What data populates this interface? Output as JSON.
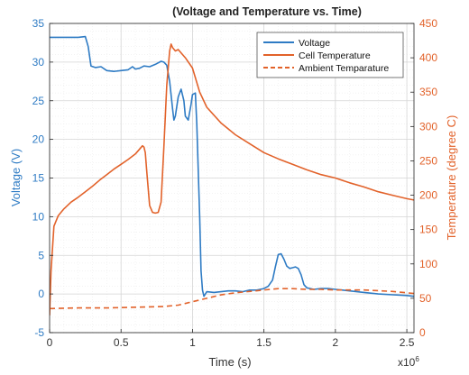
{
  "chart_data": {
    "type": "line",
    "title": "(Voltage and Temperature vs. Time)",
    "xlabel": "Time (s)",
    "ylabel_left": "Voltage (V)",
    "ylabel_right": "Temperature (degree C)",
    "x_exponent_label": "x10",
    "x_exponent_power": "6",
    "xlim": [
      0,
      2.55
    ],
    "ylim_left": [
      -5,
      35
    ],
    "ylim_right": [
      0,
      450
    ],
    "x_ticks": [
      0,
      0.5,
      1,
      1.5,
      2,
      2.5
    ],
    "x_tick_labels": [
      "0",
      "0.5",
      "1",
      "1.5",
      "2",
      "2.5"
    ],
    "y_left_ticks": [
      -5,
      0,
      5,
      10,
      15,
      20,
      25,
      30,
      35
    ],
    "y_left_tick_labels": [
      "-5",
      "0",
      "5",
      "10",
      "15",
      "20",
      "25",
      "30",
      "35"
    ],
    "y_right_ticks": [
      0,
      50,
      100,
      150,
      200,
      250,
      300,
      350,
      400,
      450
    ],
    "y_right_tick_labels": [
      "0",
      "50",
      "100",
      "150",
      "200",
      "250",
      "300",
      "350",
      "400",
      "450"
    ],
    "grid": true,
    "minor_grid": true,
    "legend_position": "top-right",
    "colors": {
      "voltage": "#2e7bc4",
      "temperature": "#e2622a",
      "grid": "#d5d5d5",
      "minor_grid": "#ececec"
    },
    "series": [
      {
        "name": "Voltage",
        "axis": "left",
        "style": "solid",
        "x": [
          0,
          0.1,
          0.2,
          0.25,
          0.27,
          0.29,
          0.32,
          0.36,
          0.4,
          0.45,
          0.5,
          0.55,
          0.58,
          0.6,
          0.63,
          0.66,
          0.7,
          0.74,
          0.78,
          0.8,
          0.82,
          0.84,
          0.86,
          0.87,
          0.88,
          0.9,
          0.92,
          0.94,
          0.95,
          0.97,
          0.99,
          1.0,
          1.02,
          1.03,
          1.05,
          1.06,
          1.07,
          1.08,
          1.1,
          1.15,
          1.2,
          1.25,
          1.3,
          1.35,
          1.4,
          1.45,
          1.5,
          1.53,
          1.56,
          1.58,
          1.6,
          1.62,
          1.64,
          1.66,
          1.68,
          1.7,
          1.72,
          1.74,
          1.76,
          1.78,
          1.8,
          1.85,
          1.9,
          1.95,
          2.0,
          2.05,
          2.1,
          2.2,
          2.3,
          2.4,
          2.5,
          2.55
        ],
        "values": [
          33.2,
          33.2,
          33.2,
          33.3,
          32.0,
          29.5,
          29.3,
          29.4,
          28.9,
          28.8,
          28.9,
          29.0,
          29.4,
          29.1,
          29.2,
          29.5,
          29.4,
          29.7,
          30.1,
          30.0,
          29.6,
          27.5,
          24.0,
          22.5,
          23.0,
          25.5,
          26.5,
          25.0,
          23.0,
          22.5,
          24.5,
          25.8,
          26.0,
          22.0,
          10.0,
          3.0,
          0.5,
          -0.3,
          0.3,
          0.2,
          0.3,
          0.4,
          0.4,
          0.3,
          0.5,
          0.5,
          0.7,
          1.0,
          1.8,
          3.5,
          5.1,
          5.2,
          4.5,
          3.6,
          3.3,
          3.4,
          3.5,
          3.3,
          2.5,
          1.2,
          0.8,
          0.6,
          0.7,
          0.7,
          0.6,
          0.5,
          0.4,
          0.2,
          0.0,
          -0.1,
          -0.2,
          -0.3
        ]
      },
      {
        "name": "Cell Temperature",
        "axis": "right",
        "style": "solid",
        "x": [
          0,
          0.01,
          0.03,
          0.06,
          0.1,
          0.15,
          0.2,
          0.25,
          0.3,
          0.35,
          0.4,
          0.45,
          0.5,
          0.55,
          0.6,
          0.65,
          0.66,
          0.67,
          0.68,
          0.7,
          0.72,
          0.74,
          0.76,
          0.78,
          0.8,
          0.82,
          0.84,
          0.85,
          0.86,
          0.88,
          0.9,
          0.95,
          1.0,
          1.05,
          1.1,
          1.2,
          1.3,
          1.4,
          1.5,
          1.6,
          1.7,
          1.8,
          1.9,
          2.0,
          2.1,
          2.2,
          2.3,
          2.4,
          2.5,
          2.55
        ],
        "values": [
          25,
          90,
          155,
          170,
          180,
          190,
          197,
          205,
          213,
          222,
          230,
          238,
          245,
          252,
          260,
          272,
          270,
          262,
          235,
          185,
          175,
          174,
          175,
          190,
          270,
          360,
          410,
          420,
          415,
          410,
          412,
          400,
          385,
          350,
          328,
          305,
          288,
          275,
          262,
          253,
          245,
          237,
          230,
          225,
          218,
          212,
          205,
          200,
          195,
          193
        ]
      },
      {
        "name": "Ambient Temparature",
        "axis": "right",
        "style": "dashed",
        "x": [
          0,
          0.2,
          0.4,
          0.6,
          0.8,
          0.9,
          1.0,
          1.1,
          1.2,
          1.3,
          1.4,
          1.5,
          1.6,
          1.7,
          1.8,
          1.9,
          2.0,
          2.1,
          2.2,
          2.3,
          2.4,
          2.5,
          2.55
        ],
        "values": [
          35,
          36,
          36,
          37,
          38,
          40,
          45,
          50,
          55,
          58,
          60,
          62,
          64,
          64,
          63,
          63,
          62,
          62,
          62,
          61,
          60,
          58,
          57
        ]
      }
    ]
  }
}
